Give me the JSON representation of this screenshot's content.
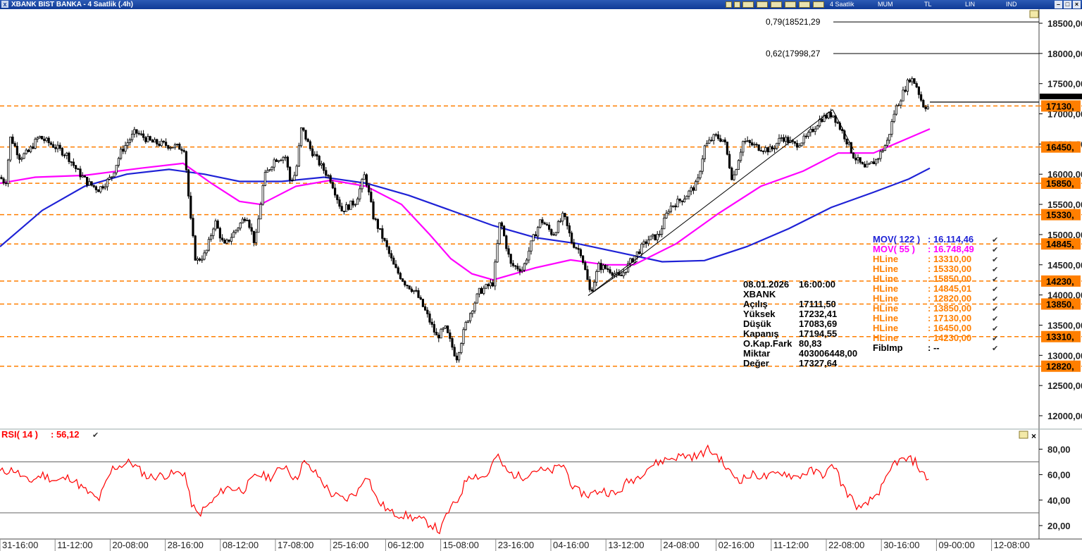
{
  "window": {
    "title": "XBANK BIST BANKA - 4 Saatlik (.4h)",
    "toolbar": {
      "period": "4 Saatlik",
      "chart_type": "MUM",
      "currency": "TL",
      "scale": "LIN",
      "indicator": "IND"
    },
    "buttons": {
      "minimize": "–",
      "maximize": "□",
      "close": "×"
    }
  },
  "colors": {
    "candle": "#000000",
    "mov122": "#1f22d6",
    "mov55": "#ff00ff",
    "hline": "#ff7f00",
    "rsi": "#ff0000",
    "rsi_bounds": "#666666"
  },
  "chart_data": [
    {
      "type": "candlestick",
      "title": "XBANK BIST BANKA - 4 Saatlik (.4h)",
      "y_axis": {
        "min": 12000,
        "max": 18500,
        "ticks": [
          "18500,00",
          "18000,00",
          "17500,00",
          "17000,00",
          "16500,00",
          "16000,00",
          "15500,00",
          "15000,00",
          "14500,00",
          "14000,00",
          "13500,00",
          "13000,00",
          "12500,00",
          "12000,00"
        ],
        "tick_values": [
          18500,
          18000,
          17500,
          17000,
          16500,
          16000,
          15500,
          15000,
          14500,
          14000,
          13500,
          13000,
          12500,
          12000
        ]
      },
      "x_axis": {
        "ticks": [
          "31-16:00",
          "11-12:00",
          "20-08:00",
          "28-16:00",
          "08-12:00",
          "17-08:00",
          "25-16:00",
          "06-12:00",
          "15-08:00",
          "23-16:00",
          "04-16:00",
          "13-12:00",
          "24-08:00",
          "02-16:00",
          "11-12:00",
          "22-08:00",
          "30-16:00",
          "09-00:00",
          "12-08:00"
        ]
      },
      "price_path": [
        [
          0,
          15950
        ],
        [
          8,
          15850
        ],
        [
          15,
          16620
        ],
        [
          28,
          16280
        ],
        [
          40,
          16360
        ],
        [
          55,
          16620
        ],
        [
          75,
          16480
        ],
        [
          95,
          16320
        ],
        [
          110,
          16050
        ],
        [
          125,
          15850
        ],
        [
          140,
          15750
        ],
        [
          158,
          15950
        ],
        [
          172,
          16380
        ],
        [
          192,
          16700
        ],
        [
          215,
          16530
        ],
        [
          238,
          16480
        ],
        [
          262,
          16430
        ],
        [
          270,
          15300
        ],
        [
          278,
          14550
        ],
        [
          292,
          14680
        ],
        [
          305,
          15230
        ],
        [
          318,
          14800
        ],
        [
          335,
          15080
        ],
        [
          350,
          15330
        ],
        [
          362,
          14840
        ],
        [
          375,
          15950
        ],
        [
          390,
          16250
        ],
        [
          405,
          16300
        ],
        [
          412,
          15880
        ],
        [
          420,
          16020
        ],
        [
          428,
          16780
        ],
        [
          440,
          16430
        ],
        [
          455,
          16150
        ],
        [
          470,
          15900
        ],
        [
          485,
          15400
        ],
        [
          505,
          15550
        ],
        [
          518,
          16000
        ],
        [
          530,
          15300
        ],
        [
          545,
          14900
        ],
        [
          560,
          14450
        ],
        [
          575,
          14200
        ],
        [
          590,
          14050
        ],
        [
          605,
          13700
        ],
        [
          620,
          13300
        ],
        [
          632,
          13450
        ],
        [
          648,
          12950
        ],
        [
          662,
          13550
        ],
        [
          680,
          14050
        ],
        [
          700,
          14200
        ],
        [
          710,
          15250
        ],
        [
          725,
          14500
        ],
        [
          742,
          14420
        ],
        [
          755,
          14880
        ],
        [
          768,
          15250
        ],
        [
          785,
          15000
        ],
        [
          800,
          15320
        ],
        [
          812,
          14870
        ],
        [
          825,
          14700
        ],
        [
          838,
          14030
        ],
        [
          850,
          14480
        ],
        [
          865,
          14420
        ],
        [
          880,
          14280
        ],
        [
          895,
          14550
        ],
        [
          905,
          14700
        ],
        [
          920,
          14920
        ],
        [
          935,
          14980
        ],
        [
          950,
          15450
        ],
        [
          970,
          15600
        ],
        [
          990,
          15850
        ],
        [
          1000,
          16450
        ],
        [
          1015,
          16630
        ],
        [
          1028,
          16560
        ],
        [
          1040,
          15900
        ],
        [
          1055,
          16550
        ],
        [
          1075,
          16450
        ],
        [
          1095,
          16400
        ],
        [
          1110,
          16620
        ],
        [
          1128,
          16480
        ],
        [
          1145,
          16600
        ],
        [
          1165,
          16920
        ],
        [
          1182,
          17000
        ],
        [
          1198,
          16650
        ],
        [
          1212,
          16300
        ],
        [
          1228,
          16080
        ],
        [
          1245,
          16250
        ],
        [
          1260,
          16550
        ],
        [
          1270,
          17050
        ],
        [
          1282,
          17350
        ],
        [
          1292,
          17600
        ],
        [
          1300,
          17500
        ],
        [
          1310,
          17150
        ],
        [
          1320,
          17100
        ]
      ],
      "series": [
        {
          "name": "MOV( 122 )",
          "label_value": "16.114,46",
          "path": [
            [
              0,
              14800
            ],
            [
              60,
              15400
            ],
            [
              120,
              15800
            ],
            [
              180,
              16000
            ],
            [
              240,
              16080
            ],
            [
              290,
              16000
            ],
            [
              340,
              15880
            ],
            [
              400,
              15880
            ],
            [
              460,
              15950
            ],
            [
              520,
              15850
            ],
            [
              580,
              15650
            ],
            [
              640,
              15400
            ],
            [
              700,
              15150
            ],
            [
              760,
              14950
            ],
            [
              820,
              14850
            ],
            [
              880,
              14700
            ],
            [
              940,
              14550
            ],
            [
              1000,
              14570
            ],
            [
              1060,
              14800
            ],
            [
              1120,
              15100
            ],
            [
              1180,
              15450
            ],
            [
              1240,
              15700
            ],
            [
              1290,
              15920
            ],
            [
              1320,
              16100
            ]
          ]
        },
        {
          "name": "MOV( 55 )",
          "label_value": "16.748,49",
          "path": [
            [
              0,
              15850
            ],
            [
              50,
              15950
            ],
            [
              120,
              15980
            ],
            [
              200,
              16100
            ],
            [
              260,
              16180
            ],
            [
              300,
              15850
            ],
            [
              340,
              15550
            ],
            [
              370,
              15500
            ],
            [
              420,
              15800
            ],
            [
              470,
              15900
            ],
            [
              520,
              15800
            ],
            [
              570,
              15500
            ],
            [
              610,
              15000
            ],
            [
              640,
              14600
            ],
            [
              670,
              14350
            ],
            [
              700,
              14250
            ],
            [
              760,
              14450
            ],
            [
              810,
              14580
            ],
            [
              860,
              14500
            ],
            [
              900,
              14500
            ],
            [
              960,
              14850
            ],
            [
              1020,
              15350
            ],
            [
              1080,
              15800
            ],
            [
              1140,
              16050
            ],
            [
              1190,
              16350
            ],
            [
              1240,
              16350
            ],
            [
              1280,
              16550
            ],
            [
              1320,
              16750
            ]
          ]
        },
        {
          "name": "RSI( 14 )",
          "label_value": "56,12",
          "path": [
            [
              0,
              62
            ],
            [
              20,
              64
            ],
            [
              40,
              54
            ],
            [
              60,
              60
            ],
            [
              80,
              55
            ],
            [
              100,
              58
            ],
            [
              120,
              48
            ],
            [
              140,
              40
            ],
            [
              160,
              65
            ],
            [
              185,
              70
            ],
            [
              210,
              58
            ],
            [
              240,
              60
            ],
            [
              262,
              62
            ],
            [
              270,
              40
            ],
            [
              280,
              28
            ],
            [
              300,
              38
            ],
            [
              320,
              50
            ],
            [
              345,
              48
            ],
            [
              365,
              60
            ],
            [
              385,
              58
            ],
            [
              405,
              68
            ],
            [
              420,
              55
            ],
            [
              430,
              70
            ],
            [
              450,
              60
            ],
            [
              470,
              45
            ],
            [
              490,
              40
            ],
            [
              510,
              48
            ],
            [
              520,
              62
            ],
            [
              535,
              40
            ],
            [
              555,
              30
            ],
            [
              575,
              28
            ],
            [
              600,
              24
            ],
            [
              615,
              20
            ],
            [
              625,
              15
            ],
            [
              635,
              30
            ],
            [
              650,
              40
            ],
            [
              665,
              60
            ],
            [
              690,
              58
            ],
            [
              705,
              75
            ],
            [
              720,
              62
            ],
            [
              740,
              58
            ],
            [
              760,
              64
            ],
            [
              780,
              62
            ],
            [
              800,
              68
            ],
            [
              815,
              48
            ],
            [
              835,
              44
            ],
            [
              855,
              48
            ],
            [
              875,
              44
            ],
            [
              890,
              54
            ],
            [
              905,
              58
            ],
            [
              920,
              66
            ],
            [
              945,
              72
            ],
            [
              970,
              75
            ],
            [
              990,
              74
            ],
            [
              1005,
              80
            ],
            [
              1020,
              74
            ],
            [
              1035,
              62
            ],
            [
              1050,
              56
            ],
            [
              1070,
              60
            ],
            [
              1090,
              58
            ],
            [
              1110,
              62
            ],
            [
              1130,
              58
            ],
            [
              1150,
              63
            ],
            [
              1170,
              60
            ],
            [
              1185,
              68
            ],
            [
              1195,
              52
            ],
            [
              1210,
              40
            ],
            [
              1222,
              32
            ],
            [
              1240,
              42
            ],
            [
              1255,
              52
            ],
            [
              1270,
              70
            ],
            [
              1290,
              72
            ],
            [
              1300,
              70
            ],
            [
              1310,
              60
            ],
            [
              1320,
              56
            ]
          ]
        }
      ],
      "hlines": [
        {
          "value": 17130,
          "label": "17130,",
          "list_value": "17130,00"
        },
        {
          "value": 16450,
          "label": "16450,",
          "list_value": "16450,00"
        },
        {
          "value": 15850,
          "label": "15850,",
          "list_value": "15850,00"
        },
        {
          "value": 15330,
          "label": "15330,",
          "list_value": "15330,00"
        },
        {
          "value": 14845,
          "label": "14845,",
          "list_value": "14845,01"
        },
        {
          "value": 14230,
          "label": "14230,",
          "list_value": "14230,00"
        },
        {
          "value": 13850,
          "label": "13850,",
          "list_value": "13850,00"
        },
        {
          "value": 13310,
          "label": "13310,",
          "list_value": "13310,00"
        },
        {
          "value": 12820,
          "label": "12820,",
          "list_value": "12820,00"
        }
      ],
      "hline_list_order": [
        "13310,00",
        "15330,00",
        "15850,00",
        "14845,01",
        "12820,00",
        "13850,00",
        "17130,00",
        "16450,00",
        "14230,00"
      ],
      "fib_levels": [
        {
          "label": "0,79(18521,29",
          "value": 18521.29
        },
        {
          "label": "0,62(17998,27",
          "value": 17998.27
        }
      ],
      "trendlines": [
        {
          "from": [
            835,
            13990
          ],
          "to": [
            1182,
            17070
          ]
        },
        {
          "from": [
            835,
            13990
          ],
          "to": [
            905,
            14560
          ]
        },
        {
          "from": [
            1182,
            17070
          ],
          "to": [
            1212,
            16400
          ]
        }
      ],
      "last_price_line": 17194.55,
      "legend": {
        "hline_name": "HLine",
        "fib_name": "FibImp",
        "fib_value": "--"
      },
      "info_box": {
        "date": "08.01.2026",
        "time": "16:00:00",
        "symbol": "XBANK",
        "rows": [
          {
            "label": "Açılış",
            "value": "17111,50"
          },
          {
            "label": "Yüksek",
            "value": "17232,41"
          },
          {
            "label": "Düşük",
            "value": "17083,69"
          },
          {
            "label": "Kapanış",
            "value": "17194,55"
          },
          {
            "label": "O.Kap.Fark",
            "value": "80,83"
          },
          {
            "label": "Miktar",
            "value": "403006448,00"
          },
          {
            "label": "Değer",
            "value": "17327,64"
          }
        ]
      }
    },
    {
      "type": "line",
      "name": "RSI( 14 )",
      "value": "56,12",
      "y_axis": {
        "min": 10,
        "max": 88,
        "ticks": [
          "80,00",
          "60,00",
          "40,00",
          "20,00"
        ],
        "tick_values": [
          80,
          60,
          40,
          20
        ]
      },
      "bounds": [
        70,
        30
      ]
    }
  ]
}
